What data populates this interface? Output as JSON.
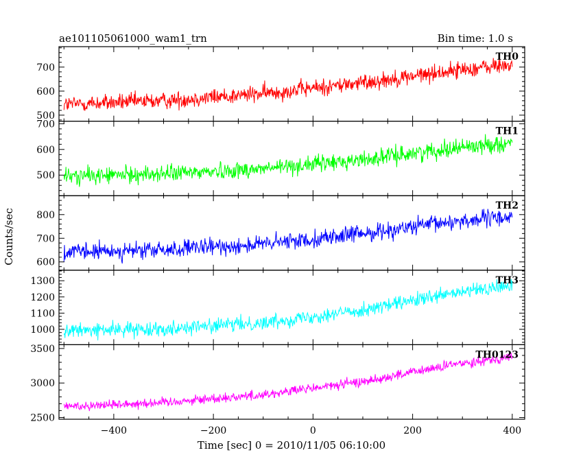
{
  "header": {
    "left_title": "ae101105061000_wam1_trn",
    "right_title": "Bin time: 1.0 s"
  },
  "chart_data": {
    "type": "line",
    "xlabel": "Time [sec] 0 = 2010/11/05 06:10:00",
    "ylabel": "Counts/sec",
    "xlim": [
      -510,
      425
    ],
    "x_ticks": [
      -400,
      -200,
      0,
      200,
      400
    ],
    "x_tick_labels": [
      "−400",
      "−200",
      "0",
      "200",
      "400"
    ],
    "x_range": [
      -500,
      400
    ],
    "bin_time_s": 1.0,
    "panels": [
      {
        "name": "TH0",
        "color": "#ff0000",
        "ylim": [
          475,
          785
        ],
        "y_ticks": [
          500,
          600,
          700
        ],
        "y_tick_labels": [
          "500",
          "600",
          "700"
        ],
        "trend": [
          [
            -500,
            545
          ],
          [
            -300,
            560
          ],
          [
            -100,
            590
          ],
          [
            100,
            635
          ],
          [
            300,
            690
          ],
          [
            400,
            710
          ]
        ],
        "noise": 32
      },
      {
        "name": "TH1",
        "color": "#00ff00",
        "ylim": [
          420,
          710
        ],
        "y_ticks": [
          500,
          600,
          700
        ],
        "y_tick_labels": [
          "500",
          "600",
          "700"
        ],
        "trend": [
          [
            -500,
            495
          ],
          [
            -300,
            505
          ],
          [
            -100,
            525
          ],
          [
            100,
            560
          ],
          [
            300,
            610
          ],
          [
            400,
            625
          ]
        ],
        "noise": 30
      },
      {
        "name": "TH2",
        "color": "#0000ff",
        "ylim": [
          565,
          880
        ],
        "y_ticks": [
          600,
          700,
          800
        ],
        "y_tick_labels": [
          "600",
          "700",
          "800"
        ],
        "trend": [
          [
            -500,
            640
          ],
          [
            -300,
            650
          ],
          [
            -100,
            675
          ],
          [
            100,
            720
          ],
          [
            300,
            775
          ],
          [
            400,
            790
          ]
        ],
        "noise": 33
      },
      {
        "name": "TH3",
        "color": "#00ffff",
        "ylim": [
          905,
          1365
        ],
        "y_ticks": [
          1000,
          1100,
          1200,
          1300
        ],
        "y_tick_labels": [
          "1000",
          "1100",
          "1200",
          "1300"
        ],
        "trend": [
          [
            -500,
            990
          ],
          [
            -300,
            1005
          ],
          [
            -100,
            1040
          ],
          [
            100,
            1120
          ],
          [
            300,
            1230
          ],
          [
            400,
            1270
          ]
        ],
        "noise": 40
      },
      {
        "name": "TH0123",
        "color": "#ff00ff",
        "ylim": [
          2475,
          3555
        ],
        "y_ticks": [
          2500,
          3000,
          3500
        ],
        "y_tick_labels": [
          "2500",
          "3000",
          "3500"
        ],
        "trend": [
          [
            -500,
            2660
          ],
          [
            -300,
            2720
          ],
          [
            -100,
            2830
          ],
          [
            100,
            3020
          ],
          [
            300,
            3290
          ],
          [
            400,
            3380
          ]
        ],
        "noise": 65
      }
    ]
  }
}
